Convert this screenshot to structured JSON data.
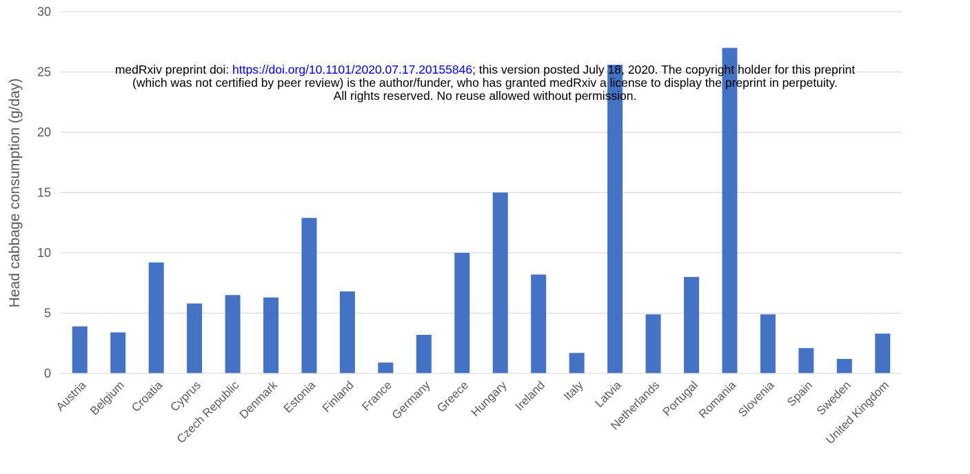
{
  "notice": {
    "line1_prefix": "medRxiv preprint doi: ",
    "doi_link": "https://doi.org/10.1101/2020.07.17.20155846",
    "line1_suffix": "; this version posted July 18, 2020. The copyright holder for this preprint",
    "line2": "(which was not certified by peer review) is the author/funder, who has granted medRxiv a license to display the preprint in perpetuity.",
    "line3": "All rights reserved. No reuse allowed without permission."
  },
  "colors": {
    "bar": "#4472C4",
    "grid": "#D9D9D9",
    "text": "#595959"
  },
  "chart_data": {
    "type": "bar",
    "title": "",
    "xlabel": "",
    "ylabel": "Head cabbage consumption (g/day)",
    "ylim": [
      0,
      30
    ],
    "yticks": [
      0,
      5,
      10,
      15,
      20,
      25,
      30
    ],
    "grid": true,
    "categories": [
      "Austria",
      "Belgium",
      "Croatia",
      "Cyprus",
      "Czech Republic",
      "Denmark",
      "Estonia",
      "Finland",
      "France",
      "Germany",
      "Greece",
      "Hungary",
      "Ireland",
      "Italy",
      "Latvia",
      "Netherlands",
      "Portugal",
      "Romania",
      "Slovenia",
      "Spain",
      "Sweden",
      "United Kingdom"
    ],
    "values": [
      3.9,
      3.4,
      9.2,
      5.8,
      6.5,
      6.3,
      12.9,
      6.8,
      0.9,
      3.2,
      10.0,
      15.0,
      8.2,
      1.7,
      25.6,
      4.9,
      8.0,
      27.0,
      4.9,
      2.1,
      1.2,
      3.3
    ]
  }
}
